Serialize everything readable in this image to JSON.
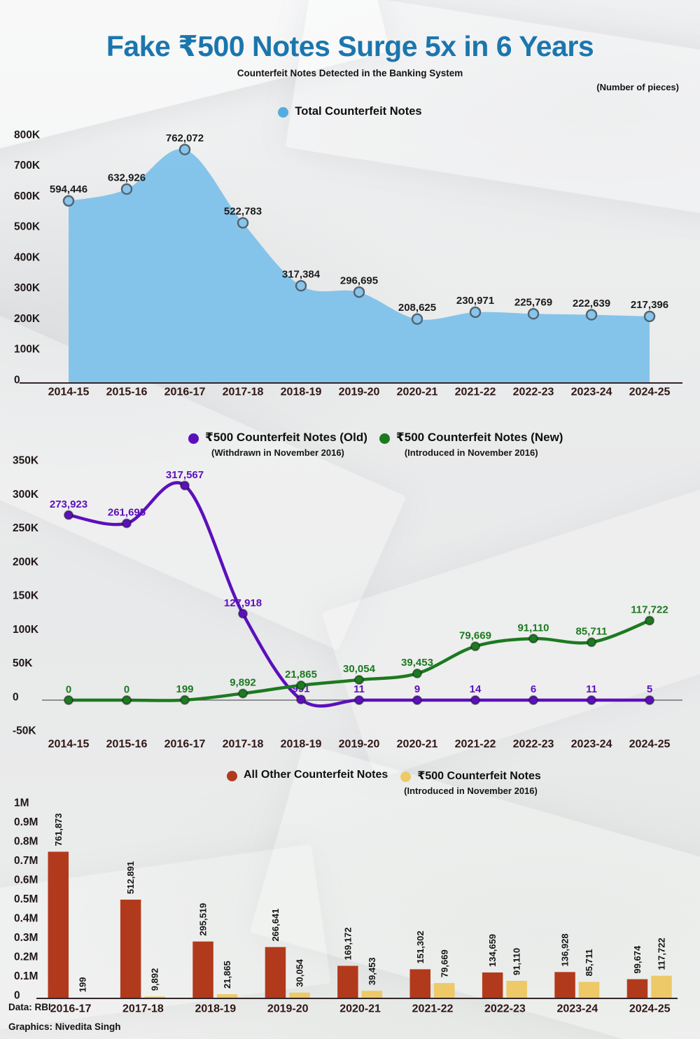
{
  "poster": {
    "title": "Fake ₹500 Notes Surge 5x in 6 Years",
    "subtitle": "Counterfeit Notes Detected in the Banking System",
    "unit_note": "(Number of pieces)",
    "footer": {
      "source": "Data: RBI",
      "credit": "Graphics: Nivedita Singh"
    }
  },
  "chart_data": [
    {
      "type": "area",
      "title": "Total Counterfeit Notes",
      "legend": {
        "label": "Total Counterfeit Notes",
        "color": "#55abdd"
      },
      "categories": [
        "2014-15",
        "2015-16",
        "2016-17",
        "2017-18",
        "2018-19",
        "2019-20",
        "2020-21",
        "2021-22",
        "2022-23",
        "2023-24",
        "2024-25"
      ],
      "values": [
        594446,
        632926,
        762072,
        522783,
        317384,
        296695,
        208625,
        230971,
        225769,
        222639,
        217396
      ],
      "fill": "#7fc2ea",
      "marker_stroke": "#54626e",
      "ylim": [
        0,
        800000
      ],
      "yticks": {
        "labels": [
          "800K",
          "700K",
          "600K",
          "500K",
          "400K",
          "300K",
          "200K",
          "100K",
          "0"
        ],
        "values": [
          800000,
          700000,
          600000,
          500000,
          400000,
          300000,
          200000,
          100000,
          0
        ]
      },
      "grid": false,
      "legend_position": "top-center"
    },
    {
      "type": "line",
      "categories": [
        "2014-15",
        "2015-16",
        "2016-17",
        "2017-18",
        "2018-19",
        "2019-20",
        "2020-21",
        "2021-22",
        "2022-23",
        "2023-24",
        "2024-25"
      ],
      "series": [
        {
          "name": "₹500 Counterfeit Notes (Old)",
          "note": "(Withdrawn in November 2016)",
          "color": "#5c10bb",
          "values": [
            273923,
            261695,
            317567,
            127918,
            991,
            11,
            9,
            14,
            6,
            11,
            5
          ]
        },
        {
          "name": "₹500 Counterfeit Notes (New)",
          "note": "(Introduced in November 2016)",
          "color": "#1c7a20",
          "values": [
            0,
            0,
            199,
            9892,
            21865,
            30054,
            39453,
            79669,
            91110,
            85711,
            117722
          ]
        }
      ],
      "ylim": [
        -50000,
        350000
      ],
      "yticks": {
        "labels": [
          "350K",
          "300K",
          "250K",
          "200K",
          "150K",
          "100K",
          "50K",
          "0",
          "-50K"
        ],
        "values": [
          350000,
          300000,
          250000,
          200000,
          150000,
          100000,
          50000,
          0,
          -50000
        ]
      },
      "grid": false,
      "legend_position": "top-center"
    },
    {
      "type": "bar",
      "categories": [
        "2016-17",
        "2017-18",
        "2018-19",
        "2019-20",
        "2020-21",
        "2021-22",
        "2022-23",
        "2023-24",
        "2024-25"
      ],
      "series": [
        {
          "name": "All Other Counterfeit Notes",
          "color": "#b23a1c",
          "values": [
            761873,
            512891,
            295519,
            266641,
            169172,
            151302,
            134659,
            136928,
            99674
          ]
        },
        {
          "name": "₹500 Counterfeit Notes",
          "note": "(Introduced in November 2016)",
          "color": "#edc968",
          "values": [
            199,
            9892,
            21865,
            30054,
            39453,
            79669,
            91110,
            85711,
            117722
          ]
        }
      ],
      "ylim": [
        0,
        1000000
      ],
      "yticks": {
        "labels": [
          "1M",
          "0.9M",
          "0.8M",
          "0.7M",
          "0.6M",
          "0.5M",
          "0.4M",
          "0.3M",
          "0.2M",
          "0.1M",
          "0"
        ],
        "values": [
          1000000,
          900000,
          800000,
          700000,
          600000,
          500000,
          400000,
          300000,
          200000,
          100000,
          0
        ]
      },
      "grid": false,
      "legend_position": "top-center"
    }
  ]
}
